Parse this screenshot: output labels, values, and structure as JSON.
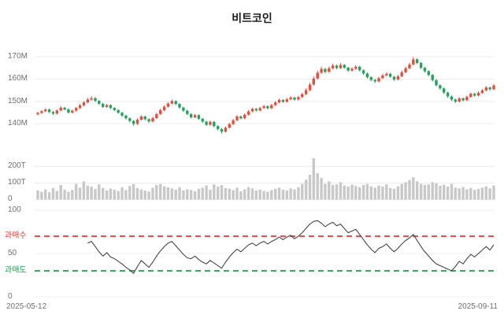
{
  "title": "비트코인",
  "x_axis": {
    "start_label": "2025-05-12",
    "end_label": "2025-09-11"
  },
  "colors": {
    "up": "#e74c3c",
    "down": "#27a05f",
    "volume": "#c8c8c8",
    "rsi_line": "#454545",
    "overbought": "#e53935",
    "oversold": "#1e9e4a",
    "grid": "#ececec",
    "axis_text": "#6f6f6f"
  },
  "chart_data": [
    {
      "type": "candlestick",
      "title": "비트코인",
      "x_range": [
        "2025-05-12",
        "2025-09-11"
      ],
      "ylim": [
        135,
        172
      ],
      "unit": "M",
      "grid": true,
      "yticks": [
        {
          "value": 140,
          "label": "140M"
        },
        {
          "value": 150,
          "label": "150M"
        },
        {
          "value": 160,
          "label": "160M"
        },
        {
          "value": 170,
          "label": "170M"
        }
      ],
      "format": "ohlc",
      "candles": [
        [
          144.2,
          145.3,
          143.7,
          144.8
        ],
        [
          144.8,
          146.1,
          144.4,
          145.6
        ],
        [
          145.6,
          146.9,
          145.2,
          146.3
        ],
        [
          146.3,
          146.8,
          144.7,
          145.2
        ],
        [
          145.2,
          145.7,
          143.9,
          144.5
        ],
        [
          144.5,
          146.4,
          144.1,
          145.9
        ],
        [
          145.9,
          147.8,
          145.5,
          147.1
        ],
        [
          147.1,
          147.6,
          145.9,
          146.4
        ],
        [
          146.4,
          146.9,
          144.5,
          145.0
        ],
        [
          145.0,
          146.3,
          144.6,
          145.8
        ],
        [
          145.8,
          147.5,
          145.4,
          147.0
        ],
        [
          147.0,
          148.9,
          146.6,
          148.2
        ],
        [
          148.2,
          150.1,
          147.8,
          149.5
        ],
        [
          149.5,
          151.6,
          149.1,
          150.8
        ],
        [
          150.8,
          152.3,
          150.3,
          151.4
        ],
        [
          151.4,
          151.9,
          149.7,
          150.2
        ],
        [
          150.2,
          150.6,
          148.4,
          148.9
        ],
        [
          148.9,
          149.3,
          147.0,
          147.5
        ],
        [
          147.5,
          148.9,
          147.1,
          148.3
        ],
        [
          148.3,
          148.7,
          146.5,
          147.0
        ],
        [
          147.0,
          147.4,
          145.6,
          146.1
        ],
        [
          146.1,
          146.5,
          144.4,
          144.9
        ],
        [
          144.9,
          145.3,
          143.0,
          143.6
        ],
        [
          143.6,
          144.0,
          141.8,
          142.4
        ],
        [
          142.4,
          142.8,
          140.5,
          141.2
        ],
        [
          141.2,
          141.6,
          139.0,
          139.9
        ],
        [
          139.9,
          142.4,
          139.5,
          141.8
        ],
        [
          141.8,
          143.8,
          141.4,
          143.2
        ],
        [
          143.2,
          143.6,
          141.4,
          142.0
        ],
        [
          142.0,
          142.4,
          140.3,
          141.0
        ],
        [
          141.0,
          143.1,
          140.6,
          142.5
        ],
        [
          142.5,
          144.9,
          142.1,
          144.3
        ],
        [
          144.3,
          146.7,
          143.9,
          146.0
        ],
        [
          146.0,
          148.2,
          145.6,
          147.6
        ],
        [
          147.6,
          149.7,
          147.2,
          149.0
        ],
        [
          149.0,
          150.8,
          148.6,
          150.1
        ],
        [
          150.1,
          150.5,
          148.3,
          148.8
        ],
        [
          148.8,
          149.2,
          146.7,
          147.2
        ],
        [
          147.2,
          147.6,
          145.3,
          145.8
        ],
        [
          145.8,
          146.2,
          143.8,
          144.3
        ],
        [
          144.3,
          144.7,
          142.3,
          142.9
        ],
        [
          142.9,
          144.4,
          142.5,
          143.8
        ],
        [
          143.8,
          144.2,
          141.7,
          142.2
        ],
        [
          142.2,
          142.6,
          140.3,
          140.9
        ],
        [
          140.9,
          141.3,
          138.9,
          139.5
        ],
        [
          139.5,
          141.4,
          139.1,
          140.8
        ],
        [
          140.8,
          141.2,
          138.3,
          138.9
        ],
        [
          138.9,
          139.3,
          137.0,
          137.6
        ],
        [
          137.6,
          138.0,
          135.5,
          136.4
        ],
        [
          136.4,
          138.8,
          136.0,
          138.2
        ],
        [
          138.2,
          140.4,
          137.8,
          139.8
        ],
        [
          139.8,
          142.1,
          139.4,
          141.5
        ],
        [
          141.5,
          143.8,
          141.1,
          143.2
        ],
        [
          143.2,
          143.6,
          141.9,
          142.4
        ],
        [
          142.4,
          144.6,
          142.0,
          144.0
        ],
        [
          144.0,
          146.1,
          143.6,
          145.5
        ],
        [
          145.5,
          147.2,
          145.1,
          146.6
        ],
        [
          146.6,
          147.0,
          145.4,
          145.9
        ],
        [
          145.9,
          147.6,
          145.5,
          147.0
        ],
        [
          147.0,
          148.4,
          146.6,
          147.8
        ],
        [
          147.8,
          148.2,
          146.4,
          146.9
        ],
        [
          146.9,
          148.9,
          146.5,
          148.3
        ],
        [
          148.3,
          150.1,
          147.9,
          149.5
        ],
        [
          149.5,
          151.2,
          149.1,
          150.6
        ],
        [
          150.6,
          151.0,
          149.3,
          149.8
        ],
        [
          149.8,
          151.5,
          149.4,
          150.9
        ],
        [
          150.9,
          152.4,
          150.5,
          151.7
        ],
        [
          151.7,
          152.1,
          150.3,
          150.8
        ],
        [
          150.8,
          152.5,
          150.4,
          151.9
        ],
        [
          151.9,
          153.9,
          151.5,
          153.2
        ],
        [
          153.2,
          155.8,
          152.8,
          155.0
        ],
        [
          155.0,
          158.4,
          154.6,
          157.5
        ],
        [
          157.5,
          161.2,
          157.1,
          160.2
        ],
        [
          160.2,
          163.8,
          159.8,
          162.8
        ],
        [
          162.8,
          165.5,
          162.3,
          164.5
        ],
        [
          164.5,
          165.0,
          162.6,
          163.2
        ],
        [
          163.2,
          165.6,
          162.8,
          164.8
        ],
        [
          164.8,
          166.9,
          164.3,
          166.0
        ],
        [
          166.0,
          166.5,
          164.3,
          164.9
        ],
        [
          164.9,
          167.1,
          164.5,
          166.3
        ],
        [
          166.3,
          166.8,
          164.5,
          165.1
        ],
        [
          165.1,
          165.5,
          163.2,
          163.8
        ],
        [
          163.8,
          165.3,
          163.3,
          164.6
        ],
        [
          164.6,
          166.2,
          164.1,
          165.5
        ],
        [
          165.5,
          165.9,
          163.4,
          163.9
        ],
        [
          163.9,
          164.3,
          161.9,
          162.5
        ],
        [
          162.5,
          162.9,
          160.2,
          160.8
        ],
        [
          160.8,
          161.2,
          159.0,
          159.6
        ],
        [
          159.6,
          160.1,
          158.2,
          158.9
        ],
        [
          158.9,
          161.0,
          158.5,
          160.4
        ],
        [
          160.4,
          162.3,
          160.0,
          161.6
        ],
        [
          161.6,
          163.0,
          161.1,
          162.3
        ],
        [
          162.3,
          162.7,
          160.5,
          161.0
        ],
        [
          161.0,
          161.4,
          159.2,
          159.8
        ],
        [
          159.8,
          161.9,
          159.4,
          161.2
        ],
        [
          161.2,
          163.8,
          160.8,
          163.0
        ],
        [
          163.0,
          165.6,
          162.6,
          164.8
        ],
        [
          164.8,
          167.3,
          164.4,
          166.5
        ],
        [
          166.5,
          169.9,
          166.1,
          168.8
        ],
        [
          168.8,
          169.3,
          166.6,
          167.2
        ],
        [
          167.2,
          167.6,
          164.4,
          165.0
        ],
        [
          165.0,
          165.4,
          162.9,
          163.5
        ],
        [
          163.5,
          163.9,
          161.2,
          161.8
        ],
        [
          161.8,
          162.2,
          158.9,
          159.5
        ],
        [
          159.5,
          159.9,
          156.6,
          157.2
        ],
        [
          157.2,
          157.6,
          155.1,
          155.8
        ],
        [
          155.8,
          156.2,
          153.3,
          153.9
        ],
        [
          153.9,
          154.3,
          151.6,
          152.2
        ],
        [
          152.2,
          152.6,
          150.1,
          150.8
        ],
        [
          150.8,
          151.2,
          149.2,
          149.9
        ],
        [
          149.9,
          151.9,
          149.5,
          151.3
        ],
        [
          151.3,
          151.7,
          149.9,
          150.5
        ],
        [
          150.5,
          152.6,
          150.1,
          152.0
        ],
        [
          152.0,
          154.0,
          151.6,
          153.4
        ],
        [
          153.4,
          153.8,
          152.0,
          152.6
        ],
        [
          152.6,
          154.4,
          152.2,
          153.8
        ],
        [
          153.8,
          155.5,
          153.4,
          154.9
        ],
        [
          154.9,
          156.9,
          154.5,
          156.2
        ],
        [
          156.2,
          156.6,
          154.8,
          155.4
        ],
        [
          155.4,
          157.8,
          155.0,
          157.1
        ]
      ]
    },
    {
      "type": "bar",
      "name": "volume",
      "unit": "T",
      "ylim": [
        0,
        260
      ],
      "grid": true,
      "yticks": [
        {
          "value": 0,
          "label": "0"
        },
        {
          "value": 100,
          "label": "100T"
        },
        {
          "value": 200,
          "label": "200T"
        }
      ],
      "values": [
        55,
        48,
        62,
        45,
        70,
        52,
        88,
        60,
        47,
        58,
        95,
        72,
        110,
        85,
        78,
        64,
        92,
        70,
        55,
        66,
        60,
        52,
        75,
        58,
        82,
        95,
        70,
        62,
        55,
        48,
        72,
        88,
        95,
        80,
        74,
        68,
        60,
        75,
        55,
        62,
        58,
        50,
        65,
        72,
        85,
        60,
        92,
        78,
        88,
        70,
        65,
        58,
        72,
        50,
        62,
        75,
        68,
        55,
        60,
        52,
        48,
        58,
        65,
        72,
        60,
        55,
        68,
        62,
        75,
        95,
        120,
        150,
        250,
        160,
        130,
        95,
        110,
        88,
        92,
        105,
        85,
        78,
        90,
        82,
        75,
        88,
        95,
        80,
        72,
        85,
        78,
        92,
        70,
        65,
        80,
        95,
        105,
        118,
        135,
        110,
        95,
        88,
        92,
        105,
        98,
        85,
        90,
        78,
        95,
        72,
        68,
        75,
        62,
        70,
        58,
        65,
        72,
        80,
        68,
        85
      ]
    },
    {
      "type": "line",
      "name": "RSI",
      "ylim": [
        0,
        100
      ],
      "grid": true,
      "yticks": [
        {
          "value": 0,
          "label": "0"
        },
        {
          "value": 50,
          "label": "50"
        },
        {
          "value": 100,
          "label": "100"
        }
      ],
      "overbought": {
        "level": 70,
        "label": "과매수"
      },
      "oversold": {
        "level": 30,
        "label": "과매도"
      },
      "values": [
        null,
        null,
        null,
        null,
        null,
        null,
        null,
        null,
        null,
        null,
        null,
        null,
        null,
        62,
        64,
        58,
        52,
        47,
        51,
        46,
        44,
        41,
        38,
        34,
        31,
        27,
        35,
        42,
        38,
        34,
        40,
        47,
        53,
        58,
        62,
        64,
        59,
        54,
        49,
        45,
        44,
        47,
        43,
        40,
        38,
        42,
        39,
        36,
        33,
        40,
        46,
        51,
        55,
        52,
        56,
        60,
        62,
        59,
        62,
        64,
        61,
        64,
        66,
        69,
        66,
        69,
        71,
        67,
        70,
        74,
        79,
        84,
        87,
        88,
        85,
        81,
        84,
        86,
        82,
        84,
        79,
        74,
        76,
        78,
        72,
        66,
        60,
        55,
        51,
        56,
        58,
        61,
        56,
        52,
        56,
        61,
        65,
        68,
        72,
        65,
        58,
        52,
        47,
        42,
        38,
        36,
        34,
        32,
        30,
        35,
        41,
        38,
        44,
        49,
        46,
        50,
        54,
        58,
        54,
        60
      ]
    }
  ]
}
